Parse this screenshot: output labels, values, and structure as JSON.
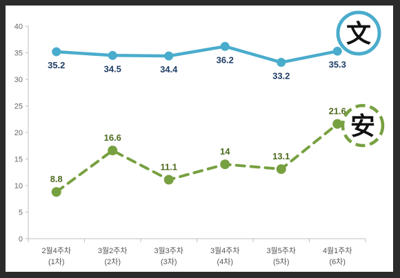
{
  "chart_data": {
    "type": "line",
    "categories": [
      [
        "2월4주차",
        "(1차)"
      ],
      [
        "3월2주차",
        "(2차)"
      ],
      [
        "3월3주차",
        "(3차)"
      ],
      [
        "3월4주차",
        "(4차)"
      ],
      [
        "3월5주차",
        "(5차)"
      ],
      [
        "4월1주차",
        "(6차)"
      ]
    ],
    "ylim": [
      0,
      40
    ],
    "yticks": [
      0,
      5,
      10,
      15,
      20,
      25,
      30,
      35,
      40
    ],
    "grid": false,
    "series": [
      {
        "name": "文",
        "values": [
          35.2,
          34.5,
          34.4,
          36.2,
          33.2,
          35.3
        ],
        "labels": [
          "35.2",
          "34.5",
          "34.4",
          "36.2",
          "33.2",
          "35.3"
        ],
        "color": "#4aaccc",
        "label_color": "#1f3d66",
        "line_style": "solid",
        "badge_style": "solid"
      },
      {
        "name": "安",
        "values": [
          8.8,
          16.6,
          11.1,
          14,
          13.1,
          21.6
        ],
        "labels": [
          "8.8",
          "16.6",
          "11.1",
          "14",
          "13.1",
          "21.6"
        ],
        "color": "#77a040",
        "label_color": "#4d6a1e",
        "line_style": "dashed",
        "badge_style": "dashed"
      }
    ]
  }
}
